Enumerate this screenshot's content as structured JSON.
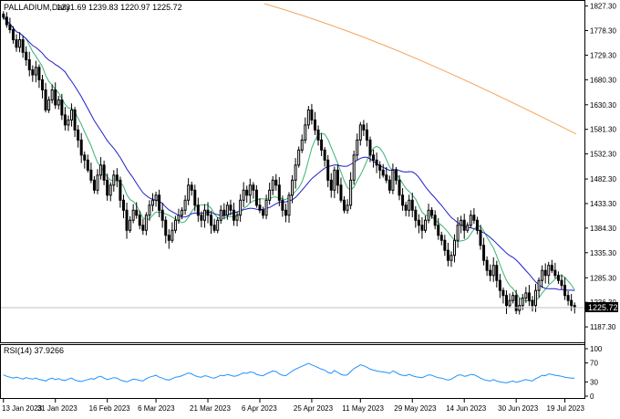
{
  "header": {
    "symbol": "PALLADIUM,Daily",
    "ohlc": "1231.69 1239.83 1220.97 1225.72"
  },
  "current_price_label": "1225.72",
  "rsi_panel": {
    "label": "RSI(14) 37.9266",
    "levels": [
      "100",
      "70",
      "30",
      "0"
    ]
  },
  "colors": {
    "background": "#ffffff",
    "candle": "#000000",
    "ma_fast": "#3cb371",
    "ma_mid": "#1e1ec8",
    "ma_slow": "#f4a460",
    "rsi_line": "#1e90ff",
    "price_label_bg": "#000000"
  },
  "chart_data": [
    {
      "type": "candlestick",
      "title": "PALLADIUM,Daily",
      "y_ticks": [
        "1827.30",
        "1778.30",
        "1729.30",
        "1680.30",
        "1630.30",
        "1581.30",
        "1532.30",
        "1482.30",
        "1433.30",
        "1384.30",
        "1335.30",
        "1285.30",
        "1236.30",
        "1187.30"
      ],
      "x_ticks": [
        "13 Jan 2023",
        "31 Jan 2023",
        "16 Feb 2023",
        "6 Mar 2023",
        "21 Mar 2023",
        "6 Apr 2023",
        "25 Apr 2023",
        "11 May 2023",
        "29 May 2023",
        "14 Jun 2023",
        "30 Jun 2023",
        "19 Jul 2023"
      ],
      "ylim": [
        1162,
        1832
      ],
      "series": [
        {
          "name": "",
          "values": [
            1805,
            1790,
            1780,
            1760,
            1745,
            1760,
            1735,
            1720,
            1700,
            1690,
            1705,
            1680,
            1660,
            1620,
            1640,
            1660,
            1630,
            1640,
            1610,
            1590,
            1600,
            1620,
            1580,
            1560,
            1530,
            1520,
            1500,
            1480,
            1460,
            1490,
            1510,
            1480,
            1450,
            1470,
            1490,
            1480,
            1440,
            1420,
            1380,
            1400,
            1420,
            1410,
            1390,
            1380,
            1410,
            1430,
            1440,
            1450,
            1420,
            1400,
            1370,
            1360,
            1380,
            1400,
            1410,
            1420,
            1440,
            1470,
            1460,
            1430,
            1410,
            1400,
            1420,
            1410,
            1390,
            1380,
            1400,
            1420,
            1410,
            1430,
            1420,
            1400,
            1410,
            1440,
            1460,
            1450,
            1470,
            1460,
            1430,
            1420,
            1410,
            1440,
            1460,
            1480,
            1470,
            1440,
            1420,
            1410,
            1450,
            1480,
            1510,
            1540,
            1560,
            1590,
            1620,
            1600,
            1580,
            1560,
            1540,
            1520,
            1480,
            1460,
            1500,
            1470,
            1440,
            1420,
            1430,
            1480,
            1530,
            1560,
            1590,
            1580,
            1560,
            1530,
            1520,
            1510,
            1500,
            1490,
            1480,
            1460,
            1500,
            1480,
            1450,
            1430,
            1420,
            1440,
            1420,
            1400,
            1390,
            1380,
            1400,
            1420,
            1410,
            1390,
            1370,
            1360,
            1340,
            1320,
            1330,
            1360,
            1390,
            1400,
            1380,
            1390,
            1410,
            1400,
            1380,
            1350,
            1320,
            1300,
            1290,
            1310,
            1280,
            1260,
            1250,
            1230,
            1240,
            1250,
            1220,
            1230,
            1245,
            1255,
            1240,
            1230,
            1260,
            1280,
            1300,
            1290,
            1310,
            1300,
            1290,
            1280,
            1270,
            1250,
            1240,
            1230,
            1226
          ]
        }
      ]
    },
    {
      "type": "line",
      "title": "RSI(14) 37.9266",
      "ylim": [
        0,
        100
      ],
      "series": [
        {
          "name": "RSI(14)",
          "values": [
            45,
            42,
            40,
            38,
            40,
            38,
            36,
            39,
            37,
            36,
            38,
            35,
            34,
            32,
            36,
            38,
            35,
            37,
            34,
            33,
            36,
            38,
            34,
            32,
            31,
            33,
            35,
            37,
            36,
            40,
            42,
            38,
            35,
            37,
            39,
            38,
            34,
            32,
            30,
            33,
            36,
            35,
            33,
            32,
            37,
            40,
            42,
            44,
            40,
            38,
            35,
            34,
            37,
            40,
            41,
            43,
            46,
            49,
            47,
            43,
            41,
            40,
            43,
            42,
            39,
            38,
            41,
            44,
            43,
            46,
            44,
            42,
            43,
            46,
            49,
            48,
            51,
            50,
            46,
            44,
            43,
            47,
            50,
            53,
            52,
            47,
            44,
            43,
            48,
            53,
            57,
            60,
            63,
            66,
            69,
            66,
            63,
            60,
            57,
            55,
            50,
            48,
            54,
            50,
            46,
            44,
            45,
            52,
            58,
            62,
            66,
            64,
            61,
            57,
            55,
            53,
            52,
            51,
            50,
            48,
            53,
            50,
            46,
            44,
            43,
            46,
            43,
            41,
            40,
            39,
            42,
            45,
            44,
            41,
            39,
            38,
            36,
            34,
            36,
            40,
            44,
            45,
            42,
            43,
            46,
            45,
            42,
            38,
            35,
            33,
            32,
            35,
            32,
            30,
            29,
            28,
            30,
            32,
            29,
            31,
            33,
            35,
            33,
            32,
            37,
            40,
            44,
            43,
            47,
            46,
            44,
            43,
            42,
            40,
            39,
            38,
            38
          ]
        }
      ]
    }
  ]
}
